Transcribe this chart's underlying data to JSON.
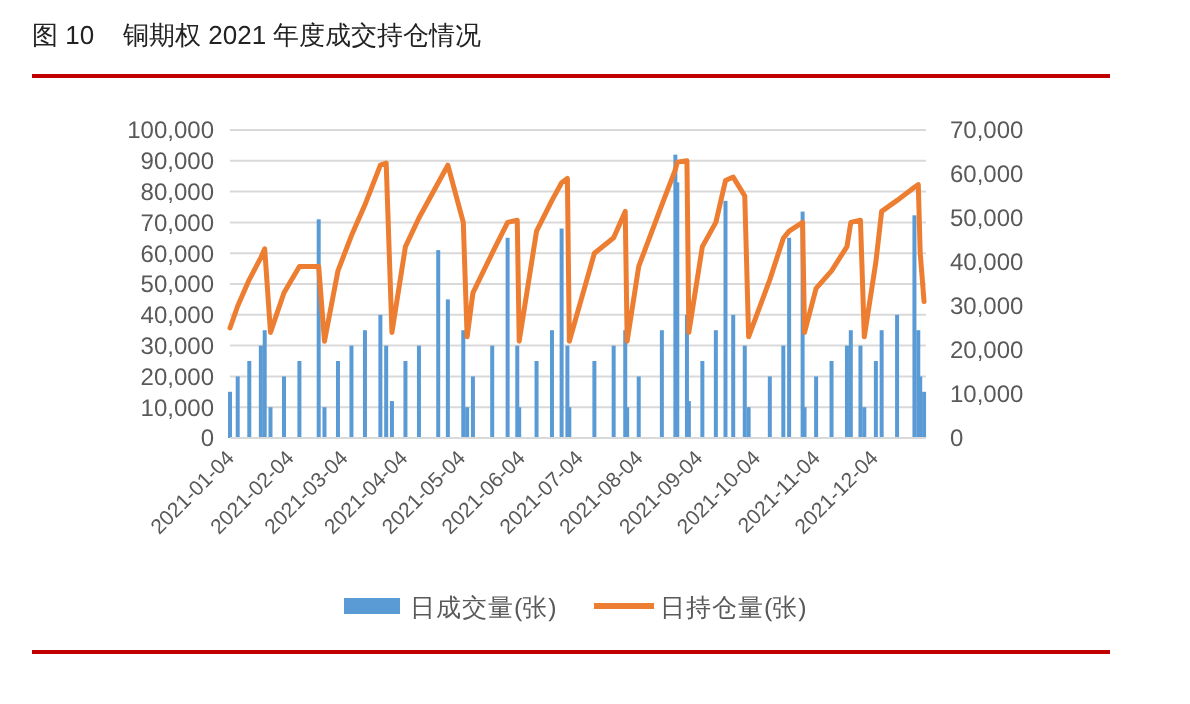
{
  "chart_data": {
    "type": "bar",
    "title": "图 10    铜期权 2021 年度成交持仓情况",
    "x": [
      "2021-01-04",
      "2021-01-08",
      "2021-01-14",
      "2021-01-20",
      "2021-01-22",
      "2021-01-25",
      "2021-02-01",
      "2021-02-09",
      "2021-02-19",
      "2021-02-22",
      "2021-03-01",
      "2021-03-08",
      "2021-03-15",
      "2021-03-23",
      "2021-03-26",
      "2021-03-29",
      "2021-04-05",
      "2021-04-12",
      "2021-04-22",
      "2021-04-27",
      "2021-05-05",
      "2021-05-07",
      "2021-05-10",
      "2021-05-20",
      "2021-05-28",
      "2021-06-02",
      "2021-06-03",
      "2021-06-12",
      "2021-06-20",
      "2021-06-25",
      "2021-06-28",
      "2021-06-29",
      "2021-07-12",
      "2021-07-22",
      "2021-07-28",
      "2021-07-29",
      "2021-08-04",
      "2021-08-16",
      "2021-08-23",
      "2021-08-24",
      "2021-08-29",
      "2021-08-30",
      "2021-09-06",
      "2021-09-13",
      "2021-09-18",
      "2021-09-22",
      "2021-09-28",
      "2021-09-30",
      "2021-10-11",
      "2021-10-18",
      "2021-10-21",
      "2021-10-28",
      "2021-10-29",
      "2021-11-04",
      "2021-11-12",
      "2021-11-20",
      "2021-11-22",
      "2021-11-27",
      "2021-11-29",
      "2021-12-05",
      "2021-12-08",
      "2021-12-16",
      "2021-12-25",
      "2021-12-27",
      "2021-12-28",
      "2021-12-30"
    ],
    "series": [
      {
        "name": "日成交量(张)",
        "color": "#5b9bd5",
        "values": [
          15000,
          20000,
          25000,
          30000,
          35000,
          10000,
          20000,
          25000,
          71000,
          10000,
          25000,
          30000,
          35000,
          40000,
          30000,
          12000,
          25000,
          30000,
          61000,
          45000,
          35000,
          10000,
          20000,
          30000,
          65000,
          30000,
          10000,
          25000,
          35000,
          68000,
          30000,
          10000,
          25000,
          30000,
          35000,
          10000,
          20000,
          35000,
          92000,
          83000,
          40000,
          12000,
          25000,
          35000,
          77000,
          40000,
          30000,
          10000,
          20000,
          30000,
          65000,
          73500,
          10000,
          20000,
          25000,
          30000,
          35000,
          30000,
          10000,
          25000,
          35000,
          40000,
          72300,
          35000,
          20000,
          15000
        ]
      },
      {
        "name": "日持仓量(张)",
        "type": "line",
        "axis": "y2",
        "color": "#ed7d31",
        "values": [
          25000,
          30000,
          36000,
          41000,
          43000,
          24000,
          33000,
          39000,
          39000,
          22000,
          38000,
          46000,
          53000,
          62000,
          62500,
          24000,
          43500,
          50000,
          58000,
          62000,
          49000,
          23000,
          33000,
          42000,
          49000,
          49500,
          22000,
          47000,
          54000,
          58000,
          59000,
          22000,
          42000,
          45500,
          51500,
          22000,
          39000,
          53000,
          61000,
          62700,
          63000,
          24000,
          43500,
          49000,
          58500,
          59300,
          55000,
          23000,
          36000,
          45400,
          47000,
          49000,
          24000,
          34000,
          38000,
          43500,
          49000,
          49500,
          23000,
          40000,
          51500,
          54000,
          57000,
          57600,
          42000,
          31000
        ]
      }
    ],
    "xlim": [
      "2021-01-04",
      "2021-12-31"
    ],
    "xticks": [
      "2021-01-04",
      "2021-02-04",
      "2021-03-04",
      "2021-04-04",
      "2021-05-04",
      "2021-06-04",
      "2021-07-04",
      "2021-08-04",
      "2021-09-04",
      "2021-10-04",
      "2021-11-04",
      "2021-12-04"
    ],
    "ylim": [
      0,
      100000
    ],
    "yticks": [
      {
        "value": 0,
        "label": "0"
      },
      {
        "value": 10000,
        "label": "10,000"
      },
      {
        "value": 20000,
        "label": "20,000"
      },
      {
        "value": 30000,
        "label": "30,000"
      },
      {
        "value": 40000,
        "label": "40,000"
      },
      {
        "value": 50000,
        "label": "50,000"
      },
      {
        "value": 60000,
        "label": "60,000"
      },
      {
        "value": 70000,
        "label": "70,000"
      },
      {
        "value": 80000,
        "label": "80,000"
      },
      {
        "value": 90000,
        "label": "90,000"
      },
      {
        "value": 100000,
        "label": "100,000"
      }
    ],
    "y2lim": [
      0,
      70000
    ],
    "y2ticks": [
      {
        "value": 0,
        "label": "0"
      },
      {
        "value": 10000,
        "label": "10,000"
      },
      {
        "value": 20000,
        "label": "20,000"
      },
      {
        "value": 30000,
        "label": "30,000"
      },
      {
        "value": 40000,
        "label": "40,000"
      },
      {
        "value": 50000,
        "label": "50,000"
      },
      {
        "value": 60000,
        "label": "60,000"
      },
      {
        "value": 70000,
        "label": "70,000"
      }
    ],
    "grid": "y",
    "legend": "bottom"
  }
}
